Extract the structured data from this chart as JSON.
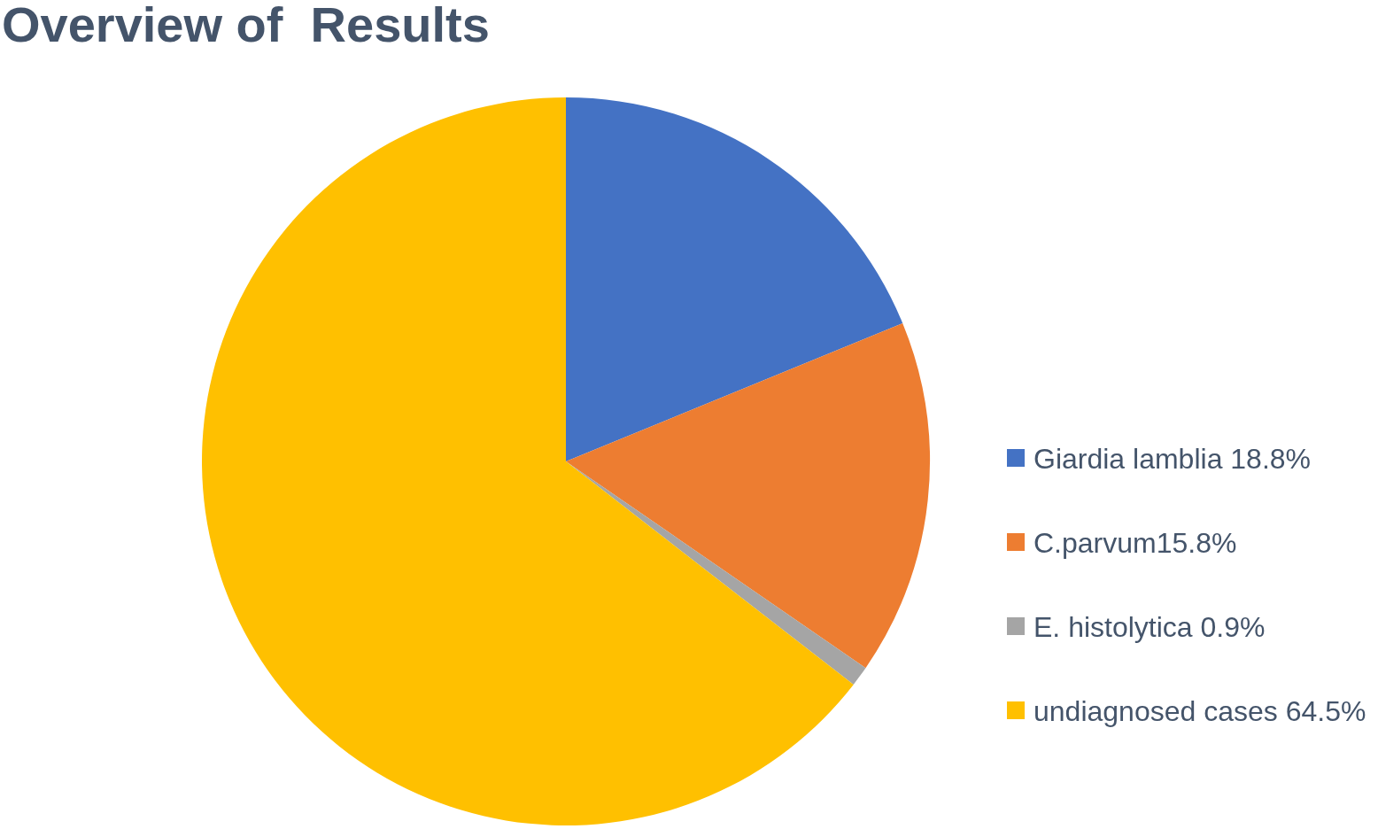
{
  "chart_data": {
    "type": "pie",
    "title": "Overview of  Results",
    "categories": [
      "Giardia lamblia 18.8%",
      "C.parvum15.8%",
      "E. histolytica 0.9%",
      "undiagnosed cases 64.5%"
    ],
    "values": [
      18.8,
      15.8,
      0.9,
      64.5
    ],
    "colors": [
      "#4472c4",
      "#ed7d31",
      "#a5a5a5",
      "#ffc000"
    ],
    "legend": "right"
  }
}
